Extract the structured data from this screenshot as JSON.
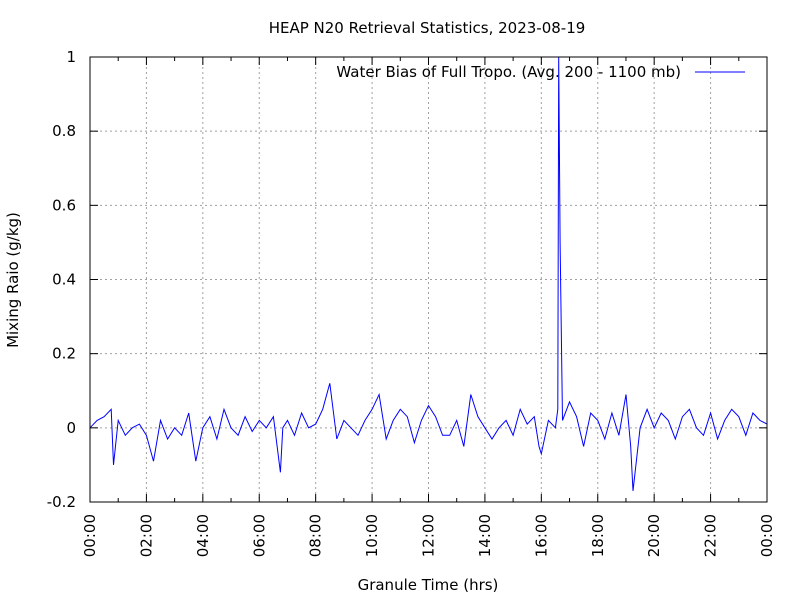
{
  "chart_data": {
    "type": "line",
    "title": "HEAP N20 Retrieval Statistics, 2023-08-19",
    "xlabel": "Granule Time (hrs)",
    "ylabel": "Mixing Raio (g/kg)",
    "xlim": [
      "00:00",
      "24:00"
    ],
    "ylim": [
      -0.2,
      1.0
    ],
    "x_tick_labels": [
      "00:00",
      "02:00",
      "04:00",
      "06:00",
      "08:00",
      "10:00",
      "12:00",
      "14:00",
      "16:00",
      "18:00",
      "20:00",
      "22:00",
      "00:00"
    ],
    "y_tick_labels": [
      "-0.2",
      "0",
      "0.2",
      "0.4",
      "0.6",
      "0.8",
      "1"
    ],
    "y_tick_values": [
      -0.2,
      0,
      0.2,
      0.4,
      0.6,
      0.8,
      1.0
    ],
    "grid": true,
    "legend_position": "top-right",
    "series": [
      {
        "name": "Water Bias of Full Tropo. (Avg. 200 - 1100 mb)",
        "color": "#0000ff",
        "x": [
          "00:00",
          "00:15",
          "00:30",
          "00:45",
          "00:50",
          "01:00",
          "01:15",
          "01:30",
          "01:45",
          "02:00",
          "02:15",
          "02:30",
          "02:45",
          "03:00",
          "03:15",
          "03:30",
          "03:45",
          "04:00",
          "04:15",
          "04:30",
          "04:45",
          "05:00",
          "05:15",
          "05:30",
          "05:45",
          "06:00",
          "06:15",
          "06:30",
          "06:45",
          "06:50",
          "07:00",
          "07:15",
          "07:30",
          "07:45",
          "08:00",
          "08:15",
          "08:30",
          "08:45",
          "09:00",
          "09:15",
          "09:30",
          "09:45",
          "10:00",
          "10:15",
          "10:30",
          "10:45",
          "11:00",
          "11:15",
          "11:30",
          "11:45",
          "12:00",
          "12:15",
          "12:30",
          "12:45",
          "13:00",
          "13:15",
          "13:30",
          "13:45",
          "14:00",
          "14:15",
          "14:30",
          "14:45",
          "15:00",
          "15:15",
          "15:30",
          "15:45",
          "15:55",
          "16:00",
          "16:15",
          "16:30",
          "16:35",
          "16:37",
          "16:40",
          "16:45",
          "17:00",
          "17:15",
          "17:30",
          "17:45",
          "18:00",
          "18:15",
          "18:30",
          "18:45",
          "19:00",
          "19:10",
          "19:15",
          "19:30",
          "19:45",
          "20:00",
          "20:15",
          "20:30",
          "20:45",
          "21:00",
          "21:15",
          "21:30",
          "21:45",
          "22:00",
          "22:15",
          "22:30",
          "22:45",
          "23:00",
          "23:15",
          "23:30",
          "23:45",
          "24:00"
        ],
        "y": [
          0.0,
          0.02,
          0.03,
          0.05,
          -0.1,
          0.02,
          -0.02,
          0.0,
          0.01,
          -0.02,
          -0.09,
          0.02,
          -0.03,
          0.0,
          -0.02,
          0.04,
          -0.09,
          0.0,
          0.03,
          -0.03,
          0.05,
          0.0,
          -0.02,
          0.03,
          -0.01,
          0.02,
          0.0,
          0.03,
          -0.12,
          0.0,
          0.02,
          -0.02,
          0.04,
          0.0,
          0.01,
          0.05,
          0.12,
          -0.03,
          0.02,
          0.0,
          -0.02,
          0.02,
          0.05,
          0.09,
          -0.03,
          0.02,
          0.05,
          0.03,
          -0.04,
          0.02,
          0.06,
          0.03,
          -0.02,
          -0.02,
          0.02,
          -0.05,
          0.09,
          0.03,
          0.0,
          -0.03,
          0.0,
          0.02,
          -0.02,
          0.05,
          0.01,
          0.03,
          -0.05,
          -0.07,
          0.02,
          0.0,
          0.05,
          1.0,
          0.5,
          0.02,
          0.07,
          0.03,
          -0.05,
          0.04,
          0.02,
          -0.03,
          0.04,
          -0.02,
          0.09,
          -0.05,
          -0.17,
          0.0,
          0.05,
          0.0,
          0.04,
          0.02,
          -0.03,
          0.03,
          0.05,
          0.0,
          -0.02,
          0.04,
          -0.03,
          0.02,
          0.05,
          0.03,
          -0.02,
          0.04,
          0.02,
          0.01
        ]
      }
    ]
  }
}
